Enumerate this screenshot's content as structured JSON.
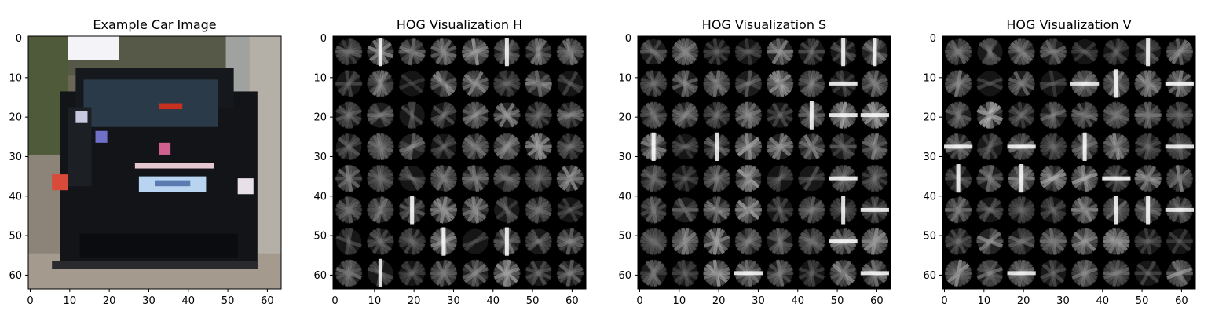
{
  "chart_data": [
    {
      "type": "heatmap",
      "variant": "photo",
      "title": "Example Car Image",
      "xlim": [
        0,
        64
      ],
      "ylim": [
        64,
        0
      ],
      "xticks": [
        0,
        10,
        20,
        30,
        40,
        50,
        60
      ],
      "yticks": [
        0,
        10,
        20,
        30,
        40,
        50,
        60
      ],
      "grid": false
    },
    {
      "type": "heatmap",
      "variant": "hog",
      "title": "HOG Visualization H",
      "xlim": [
        0,
        64
      ],
      "ylim": [
        64,
        0
      ],
      "xticks": [
        0,
        10,
        20,
        30,
        40,
        50,
        60
      ],
      "yticks": [
        0,
        10,
        20,
        30,
        40,
        50,
        60
      ],
      "colormap": "gray",
      "grid": false
    },
    {
      "type": "heatmap",
      "variant": "hog",
      "title": "HOG Visualization S",
      "xlim": [
        0,
        64
      ],
      "ylim": [
        64,
        0
      ],
      "xticks": [
        0,
        10,
        20,
        30,
        40,
        50,
        60
      ],
      "yticks": [
        0,
        10,
        20,
        30,
        40,
        50,
        60
      ],
      "colormap": "gray",
      "grid": false
    },
    {
      "type": "heatmap",
      "variant": "hog",
      "title": "HOG Visualization V",
      "xlim": [
        0,
        64
      ],
      "ylim": [
        64,
        0
      ],
      "xticks": [
        0,
        10,
        20,
        30,
        40,
        50,
        60
      ],
      "yticks": [
        0,
        10,
        20,
        30,
        40,
        50,
        60
      ],
      "colormap": "gray",
      "grid": false
    }
  ]
}
